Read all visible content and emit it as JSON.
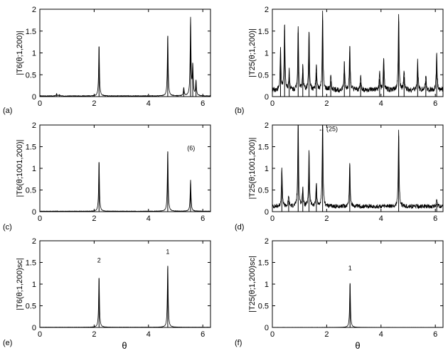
{
  "figure": {
    "xlabel": "θ"
  },
  "chart_data": [
    {
      "type": "line",
      "panel_label": "(a)",
      "ylabel": "|T6(θ;1,200)|",
      "xlim": [
        0,
        6.2832
      ],
      "ylim": [
        0,
        2
      ],
      "xticks": [
        0,
        2,
        4,
        6
      ],
      "yticks": [
        0,
        0.5,
        1,
        1.5,
        2
      ],
      "baseline": 0.015,
      "peaks": [
        {
          "x": 0.62,
          "h": 0.05
        },
        {
          "x": 0.72,
          "h": 0.03
        },
        {
          "x": 2.18,
          "h": 1.14
        },
        {
          "x": 4.71,
          "h": 1.39
        },
        {
          "x": 5.3,
          "h": 0.18
        },
        {
          "x": 5.55,
          "h": 1.77
        },
        {
          "x": 5.63,
          "h": 0.68
        },
        {
          "x": 5.75,
          "h": 0.35
        }
      ],
      "annotations": []
    },
    {
      "type": "line",
      "panel_label": "(b)",
      "ylabel": "|T25(θ;1,200)|",
      "xlim": [
        0,
        6.2832
      ],
      "ylim": [
        0,
        2
      ],
      "xticks": [
        0,
        2,
        4,
        6
      ],
      "yticks": [
        0,
        0.5,
        1,
        1.5,
        2
      ],
      "baseline": 0.15,
      "peaks": [
        {
          "x": 0.3,
          "h": 0.9
        },
        {
          "x": 0.45,
          "h": 1.52
        },
        {
          "x": 0.62,
          "h": 0.45
        },
        {
          "x": 0.95,
          "h": 1.46
        },
        {
          "x": 1.12,
          "h": 0.55
        },
        {
          "x": 1.35,
          "h": 1.4
        },
        {
          "x": 1.62,
          "h": 0.55
        },
        {
          "x": 1.85,
          "h": 1.75
        },
        {
          "x": 2.15,
          "h": 0.35
        },
        {
          "x": 2.65,
          "h": 0.62
        },
        {
          "x": 2.85,
          "h": 1.03
        },
        {
          "x": 3.25,
          "h": 0.32
        },
        {
          "x": 3.95,
          "h": 0.4
        },
        {
          "x": 4.1,
          "h": 0.75
        },
        {
          "x": 4.65,
          "h": 1.72
        },
        {
          "x": 4.85,
          "h": 0.45
        },
        {
          "x": 5.35,
          "h": 0.68
        },
        {
          "x": 5.65,
          "h": 0.35
        },
        {
          "x": 6.05,
          "h": 0.82
        }
      ],
      "annotations": []
    },
    {
      "type": "line",
      "panel_label": "(c)",
      "ylabel": "|T6(θ;1001,200)|",
      "xlim": [
        0,
        6.2832
      ],
      "ylim": [
        0,
        2
      ],
      "xticks": [
        0,
        2,
        4,
        6
      ],
      "yticks": [
        0,
        0.5,
        1,
        1.5,
        2
      ],
      "baseline": 0.01,
      "peaks": [
        {
          "x": 2.18,
          "h": 1.14
        },
        {
          "x": 4.71,
          "h": 1.39
        },
        {
          "x": 5.55,
          "h": 0.72
        }
      ],
      "annotations": [
        {
          "text": "(6)",
          "x": 5.57,
          "y": 1.42
        }
      ]
    },
    {
      "type": "line",
      "panel_label": "(d)",
      "ylabel": "|T25(θ;1001,200)|",
      "xlim": [
        0,
        6.2832
      ],
      "ylim": [
        0,
        2
      ],
      "xticks": [
        0,
        2,
        4,
        6
      ],
      "yticks": [
        0,
        0.5,
        1,
        1.5,
        2
      ],
      "baseline": 0.12,
      "peaks": [
        {
          "x": 0.35,
          "h": 0.9
        },
        {
          "x": 0.6,
          "h": 0.25
        },
        {
          "x": 0.95,
          "h": 2.0
        },
        {
          "x": 1.12,
          "h": 0.45
        },
        {
          "x": 1.35,
          "h": 1.3
        },
        {
          "x": 1.62,
          "h": 0.55
        },
        {
          "x": 1.85,
          "h": 2.0
        },
        {
          "x": 2.85,
          "h": 1.02
        },
        {
          "x": 4.65,
          "h": 1.75
        },
        {
          "x": 6.05,
          "h": 0.18
        }
      ],
      "annotations": [
        {
          "text": "← (25)",
          "x": 2.05,
          "y": 1.86
        }
      ]
    },
    {
      "type": "line",
      "panel_label": "(e)",
      "ylabel": "|T6(θ;1,200)sc|",
      "xlim": [
        0,
        6.2832
      ],
      "ylim": [
        0,
        2
      ],
      "xticks": [
        0,
        2,
        4,
        6
      ],
      "yticks": [
        0,
        0.5,
        1,
        1.5,
        2
      ],
      "baseline": 0.005,
      "peaks": [
        {
          "x": 2.18,
          "h": 1.14
        },
        {
          "x": 4.71,
          "h": 1.42
        }
      ],
      "annotations": [
        {
          "text": "2",
          "x": 2.18,
          "y": 1.5
        },
        {
          "text": "1",
          "x": 4.71,
          "y": 1.7
        }
      ]
    },
    {
      "type": "line",
      "panel_label": "(f)",
      "ylabel": "|T25(θ;1,200)sc|",
      "xlim": [
        0,
        6.2832
      ],
      "ylim": [
        0,
        2
      ],
      "xticks": [
        0,
        2,
        4,
        6
      ],
      "yticks": [
        0,
        0.5,
        1,
        1.5,
        2
      ],
      "baseline": 0.002,
      "peaks": [
        {
          "x": 2.86,
          "h": 1.02
        }
      ],
      "annotations": [
        {
          "text": "1",
          "x": 2.86,
          "y": 1.32
        }
      ]
    }
  ]
}
